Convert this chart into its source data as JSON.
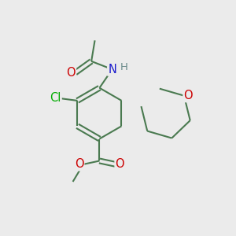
{
  "bg_color": "#ebebeb",
  "bond_color": "#4a7a50",
  "bond_width": 1.5,
  "atom_colors": {
    "O": "#cc0000",
    "N": "#1a1acc",
    "Cl": "#00aa00",
    "H": "#6a8a8a",
    "C": "#4a7a50"
  },
  "font_size": 10.5,
  "figsize": [
    3.0,
    3.0
  ],
  "dpi": 100
}
